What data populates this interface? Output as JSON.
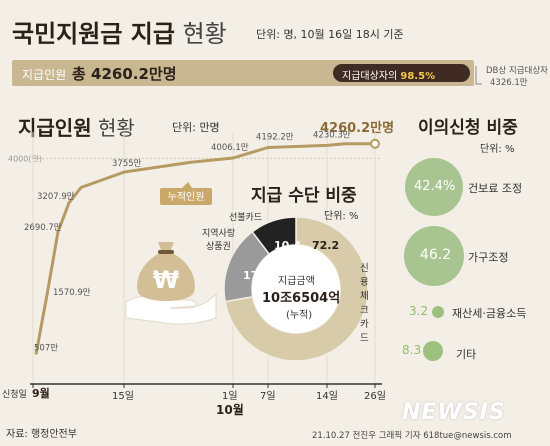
{
  "header": {
    "title_bold": "국민지원금 지급",
    "title_light": "현황",
    "unit_note": "단위: 명, 10월 16일 18시 기준"
  },
  "banner": {
    "label": "지급인원",
    "value": "총 4260.2만명",
    "ratio_label": "지급대상자의",
    "ratio_value": "98.5%",
    "db_note_line1": "DB상 지급대상자",
    "db_note_line2": "4326.1만"
  },
  "line_section": {
    "title_bold": "지급인원",
    "title_light": "현황",
    "unit": "단위: 만명",
    "final_label": "4260.2만명",
    "series_label": "누적인원",
    "y_tick": "4000(만)",
    "x_labels": [
      {
        "text": "신청일",
        "bold": false
      },
      {
        "text": "9월",
        "bold": true
      },
      {
        "text": "15일",
        "bold": false
      },
      {
        "text": "1일",
        "bold": false
      },
      {
        "text": "7일",
        "bold": false
      },
      {
        "text": "14일",
        "bold": false
      },
      {
        "text": "26일",
        "bold": false
      }
    ],
    "x_month_label": "10월"
  },
  "chart_data": [
    {
      "type": "line",
      "x": [
        "9/6",
        "9/7",
        "9/8",
        "9/9",
        "9/10",
        "9/15",
        "9/24",
        "10/1",
        "10/7",
        "10/14",
        "10/16",
        "10/26"
      ],
      "series": [
        {
          "name": "누적인원",
          "values": [
            507,
            1570.9,
            2690.7,
            3207.9,
            3481,
            3755,
            3928,
            4006.1,
            4192.2,
            4230.3,
            4260.2,
            4260.2
          ]
        }
      ],
      "data_labels": [
        "507만",
        "1570.9만",
        "2690.7만",
        "3207.9만",
        "",
        "3755만",
        "",
        "4006.1만",
        "4192.2만",
        "4230.3만",
        "",
        "4260.2만명"
      ],
      "ylim": [
        0,
        4326.1
      ],
      "y_ticks": [
        4000
      ]
    },
    {
      "type": "pie",
      "title": "지급 수단 비중",
      "unit": "단위: %",
      "categories": [
        "신용체크카드",
        "지역사랑상품권",
        "선불카드"
      ],
      "values": [
        72.2,
        17.4,
        10.4
      ],
      "colors": [
        "#d8cbaa",
        "#9a9a9a",
        "#222222"
      ],
      "center_label1": "지급금액",
      "center_value": "10조6504억",
      "center_label2": "(누적)"
    },
    {
      "type": "bubble",
      "title": "이의신청 비중",
      "unit": "단위: %",
      "categories": [
        "건보료 조정",
        "가구조정",
        "재산세·금융소득",
        "기타"
      ],
      "values": [
        42.4,
        46.2,
        3.2,
        8.3
      ],
      "value_labels": [
        "42.4%",
        "46.2",
        "3.2",
        "8.3"
      ]
    }
  ],
  "pie_labels": {
    "credit": "신용체크카드",
    "local_line1": "지역사랑",
    "local_line2": "상품권",
    "prepaid": "선불카드"
  },
  "footer": {
    "source": "자료: 행정안전부",
    "credit": "21.10.27 전진우 그래픽 기자 618tue@newsis.com",
    "logo": "NEWSIS"
  },
  "colors": {
    "line": "#b69a63",
    "banner": "#c9b792",
    "pill": "#3f2b23",
    "accent_text": "#8c6a36",
    "bubble": "#a8c490"
  },
  "icons": [
    "money-bag-icon",
    "hand-icon",
    "won-sign-icon"
  ]
}
